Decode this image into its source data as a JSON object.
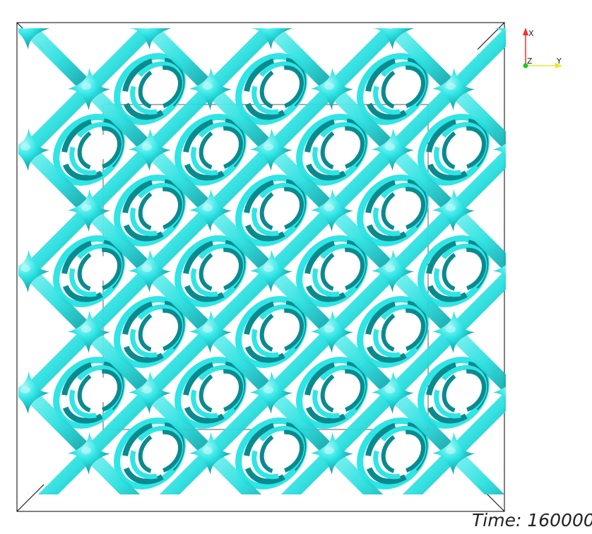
{
  "time_label": "Time: 160000",
  "axes": {
    "x": "X",
    "y": "Y",
    "z": "Z"
  },
  "colors": {
    "surface": "#2fe5e5",
    "surface_shadow": "#0a8a8f",
    "surface_highlight": "#bffafa",
    "background": "#ffffff",
    "outline": "#000000",
    "axis_x": "#ff2a2a",
    "axis_y": "#e8e82a",
    "axis_z": "#22c822"
  },
  "scene": {
    "description": "cyan isosurface lattice"
  }
}
